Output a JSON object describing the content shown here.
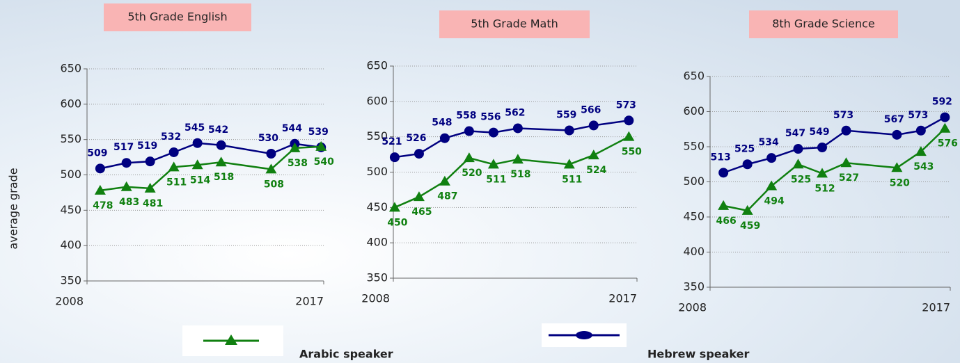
{
  "chart_data": [
    {
      "type": "line",
      "title": "5th Grade English",
      "y_label": "average grade",
      "x": [
        2008.5,
        2009.5,
        2010.4,
        2011.3,
        2012.2,
        2013.1,
        2015.0,
        2015.9,
        2016.9
      ],
      "xlim": [
        2008,
        2017
      ],
      "xticks": [
        2008,
        2017
      ],
      "ylim": [
        350,
        650
      ],
      "yticks": [
        350,
        400,
        450,
        500,
        550,
        600,
        650
      ],
      "grid": true,
      "series": [
        {
          "name": "Hebrew speaker",
          "color": "#000080",
          "values": [
            509,
            517,
            519,
            532,
            545,
            542,
            530,
            544,
            539
          ]
        },
        {
          "name": "Arabic speaker",
          "color": "#108010",
          "values": [
            478,
            483,
            481,
            511,
            514,
            518,
            508,
            538,
            540
          ]
        }
      ]
    },
    {
      "type": "line",
      "title": "5th Grade Math",
      "x": [
        2008.05,
        2008.95,
        2009.9,
        2010.8,
        2011.7,
        2012.6,
        2014.5,
        2015.4,
        2016.7
      ],
      "xlim": [
        2008,
        2017
      ],
      "xticks": [
        2008,
        2017
      ],
      "ylim": [
        350,
        650
      ],
      "yticks": [
        350,
        400,
        450,
        500,
        550,
        600,
        650
      ],
      "grid": true,
      "series": [
        {
          "name": "Hebrew speaker",
          "color": "#000080",
          "values": [
            521,
            526,
            548,
            558,
            556,
            562,
            559,
            566,
            573
          ]
        },
        {
          "name": "Arabic speaker",
          "color": "#108010",
          "values": [
            450,
            465,
            487,
            520,
            511,
            518,
            511,
            524,
            550
          ]
        }
      ]
    },
    {
      "type": "line",
      "title": "8th Grade Science",
      "x": [
        2008.5,
        2009.4,
        2010.3,
        2011.3,
        2012.2,
        2013.1,
        2015.0,
        2015.9,
        2016.8
      ],
      "xlim": [
        2008,
        2017
      ],
      "xticks": [
        2008,
        2017
      ],
      "ylim": [
        350,
        650
      ],
      "yticks": [
        350,
        400,
        450,
        500,
        550,
        600,
        650
      ],
      "grid": true,
      "series": [
        {
          "name": "Hebrew speaker",
          "color": "#000080",
          "values": [
            513,
            525,
            534,
            547,
            549,
            573,
            567,
            573,
            592
          ]
        },
        {
          "name": "Arabic speaker",
          "color": "#108010",
          "values": [
            466,
            459,
            494,
            525,
            512,
            527,
            520,
            543,
            576
          ]
        }
      ]
    }
  ]
}
